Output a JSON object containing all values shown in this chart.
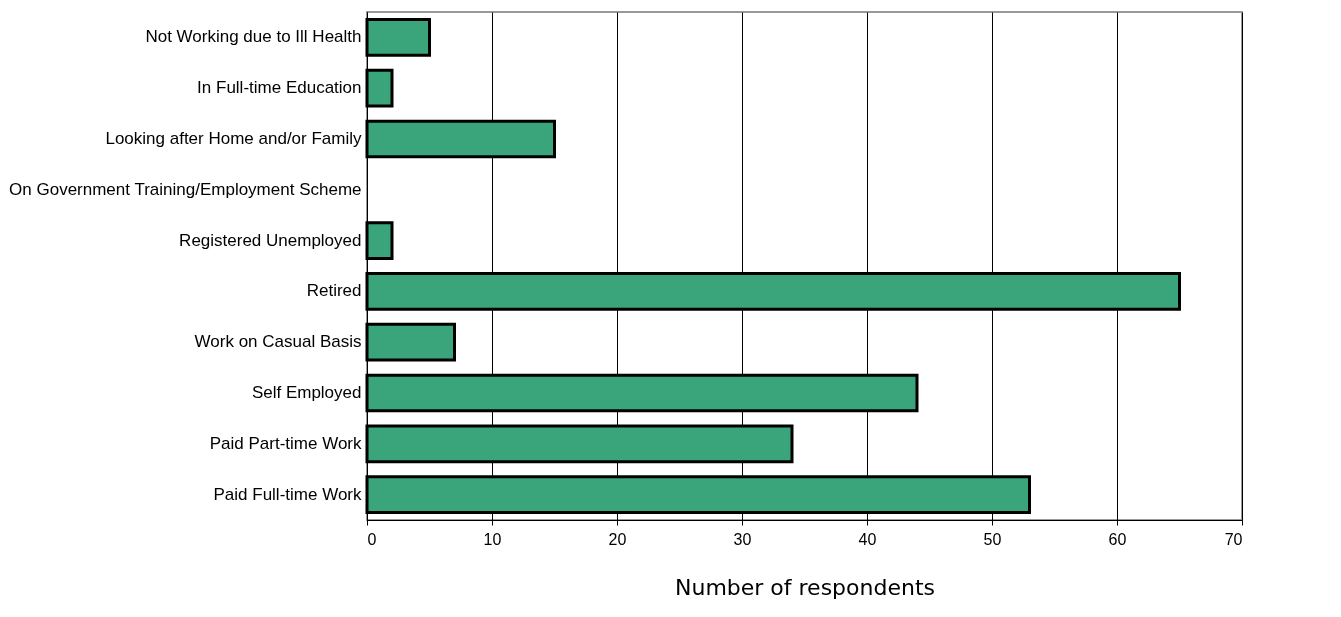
{
  "chart_data": {
    "type": "bar",
    "orientation": "horizontal",
    "xlabel": "Number of respondents",
    "categories": [
      "Not Working due to Ill Health",
      "In Full-time Education",
      "Looking after Home and/or Family",
      "On Government Training/Employment Scheme",
      "Registered Unemployed",
      "Retired",
      "Work on Casual Basis",
      "Self Employed",
      "Paid Part-time Work",
      "Paid Full-time Work"
    ],
    "values": [
      5,
      2,
      15,
      0,
      2,
      65,
      7,
      44,
      34,
      53
    ],
    "color": "#3aa57a",
    "xlim": [
      0,
      70
    ],
    "xticks": [
      0,
      10,
      20,
      30,
      40,
      50,
      60,
      70
    ],
    "grid": "x"
  }
}
